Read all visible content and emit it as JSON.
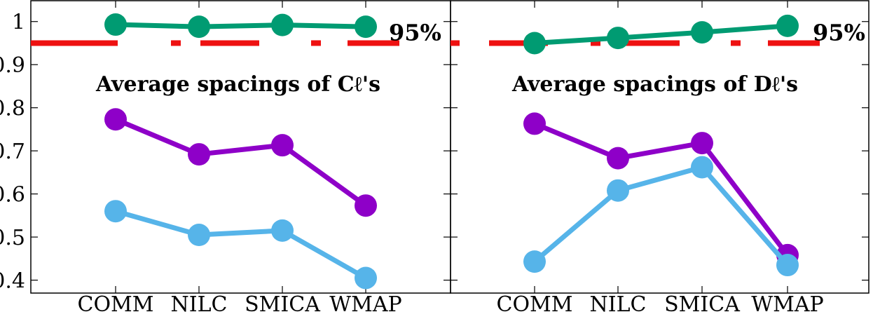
{
  "chart_data": [
    {
      "type": "line",
      "title": "Average spacings of Cℓ's",
      "categories": [
        "COMM",
        "NILC",
        "SMICA",
        "WMAP"
      ],
      "ylim": [
        0.37,
        1.05
      ],
      "yticks": [
        0.4,
        0.5,
        0.6,
        0.7,
        0.8,
        0.9,
        1
      ],
      "ytick_labels": [
        "0.4",
        "0.5",
        "0.6",
        "0.7",
        "0.8",
        "0.9",
        "1"
      ],
      "reference_line": {
        "value": 0.95,
        "label": "95%",
        "color": "#ee1111"
      },
      "grid": false,
      "series": [
        {
          "color": "#009b72",
          "values": [
            0.993,
            0.988,
            0.992,
            0.988
          ]
        },
        {
          "color": "#8e00c8",
          "values": [
            0.773,
            0.692,
            0.713,
            0.573
          ]
        },
        {
          "color": "#56b4e9",
          "values": [
            0.56,
            0.505,
            0.515,
            0.405
          ]
        }
      ]
    },
    {
      "type": "line",
      "title": "Average spacings of Dℓ's",
      "categories": [
        "COMM",
        "NILC",
        "SMICA",
        "WMAP"
      ],
      "ylim": [
        0.37,
        1.05
      ],
      "reference_line": {
        "value": 0.95,
        "label": "95%",
        "color": "#ee1111"
      },
      "grid": false,
      "series": [
        {
          "color": "#009b72",
          "values": [
            0.95,
            0.962,
            0.975,
            0.99
          ]
        },
        {
          "color": "#8e00c8",
          "values": [
            0.763,
            0.683,
            0.718,
            0.458
          ]
        },
        {
          "color": "#56b4e9",
          "values": [
            0.443,
            0.608,
            0.662,
            0.435
          ]
        }
      ]
    }
  ]
}
